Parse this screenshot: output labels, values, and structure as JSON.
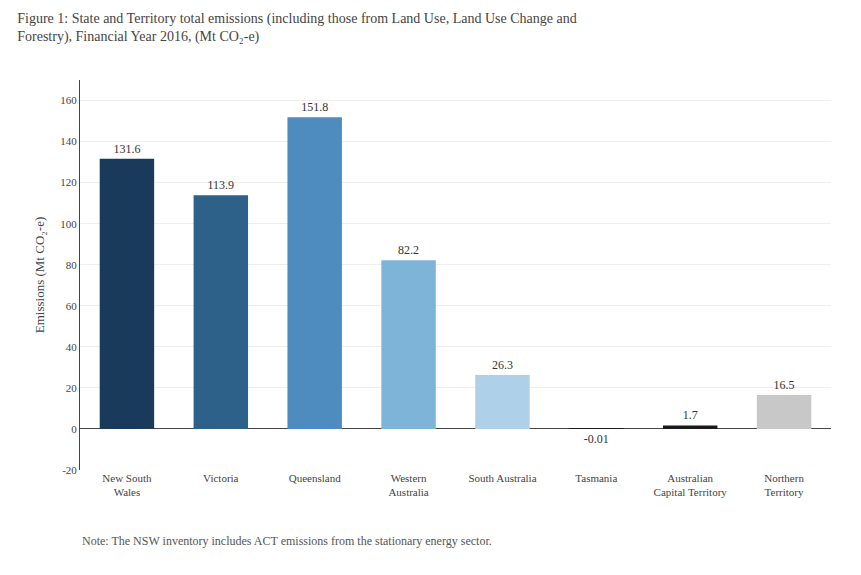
{
  "chart_data": {
    "type": "bar",
    "title": "Figure 1: State and Territory total emissions (including those from Land Use, Land Use Change and\nForestry), Financial Year 2016, (Mt CO₂-e)",
    "ylabel": "Emissions (Mt CO₂-e)",
    "categories": [
      "New South\nWales",
      "Victoria",
      "Queensland",
      "Western\nAustralia",
      "South Australia",
      "Tasmania",
      "Australian\nCapital Territory",
      "Northern\nTerritory"
    ],
    "values": [
      131.6,
      113.9,
      151.8,
      82.2,
      26.3,
      -0.01,
      1.7,
      16.5
    ],
    "colors": [
      "#1a3a5c",
      "#2e618a",
      "#4e8bbf",
      "#7db4d8",
      "#aed0e8",
      "#1a1a1a",
      "#1a1a1a",
      "#c8c8c8"
    ],
    "data_labels": true,
    "ylim": [
      -20,
      170
    ],
    "yticks": [
      -20,
      0,
      20,
      40,
      60,
      80,
      100,
      120,
      140,
      160
    ],
    "grid": true,
    "annotations": [
      "Note: The NSW inventory includes ACT emissions from the stationary energy sector."
    ]
  }
}
